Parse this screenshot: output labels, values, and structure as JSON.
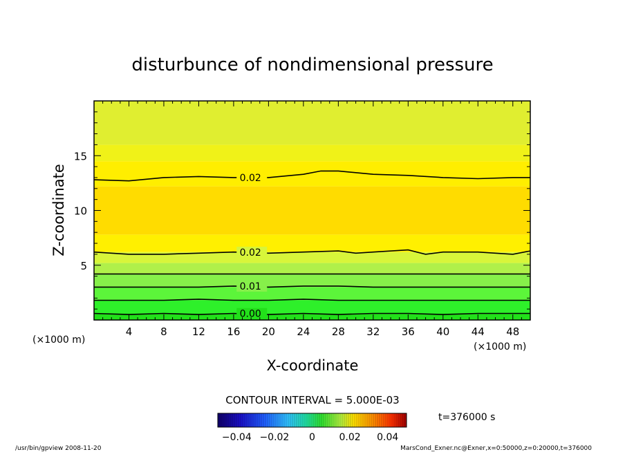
{
  "chart_data": {
    "type": "contour",
    "title": "disturbunce of nondimensional pressure",
    "xlabel": "X-coordinate",
    "ylabel": "Z-coordinate",
    "x_unit_left": "(×1000 m)",
    "x_unit_right": "(×1000 m)",
    "xlim": [
      0,
      50
    ],
    "ylim": [
      0,
      20
    ],
    "x_ticks": [
      4,
      8,
      12,
      16,
      20,
      24,
      28,
      32,
      36,
      40,
      44,
      48
    ],
    "x_tick_labels": [
      "4",
      "8",
      "12",
      "16",
      "20",
      "24",
      "28",
      "32",
      "36",
      "40",
      "44",
      "48"
    ],
    "y_ticks": [
      5,
      10,
      15
    ],
    "y_tick_labels": [
      "5",
      "10",
      "15"
    ],
    "contour_interval_text": "CONTOUR INTERVAL = 5.000E-03",
    "time_text": "t=376000 s",
    "colorbar": {
      "range": [
        -0.05,
        0.05
      ],
      "ticks": [
        -0.04,
        -0.02,
        0,
        0.02,
        0.04
      ],
      "tick_labels": [
        "−0.04",
        "−0.02",
        "0",
        "0.02",
        "0.04"
      ]
    },
    "fill_bands": [
      {
        "z_bottom": 0.0,
        "z_top": 0.6,
        "color": "#22e01a"
      },
      {
        "z_bottom": 0.6,
        "z_top": 1.8,
        "color": "#2ef02a"
      },
      {
        "z_bottom": 1.8,
        "z_top": 3.0,
        "color": "#5cf53a"
      },
      {
        "z_bottom": 3.0,
        "z_top": 4.2,
        "color": "#86f04a"
      },
      {
        "z_bottom": 4.2,
        "z_top": 5.2,
        "color": "#b0f04a"
      },
      {
        "z_bottom": 5.2,
        "z_top": 6.2,
        "color": "#d8f53a"
      },
      {
        "z_bottom": 6.2,
        "z_top": 7.8,
        "color": "#fff000"
      },
      {
        "z_bottom": 7.8,
        "z_top": 12.2,
        "color": "#ffdc00"
      },
      {
        "z_bottom": 12.2,
        "z_top": 14.5,
        "color": "#ffee00"
      },
      {
        "z_bottom": 14.5,
        "z_top": 16.0,
        "color": "#f0f218"
      },
      {
        "z_bottom": 16.0,
        "z_top": 20.0,
        "color": "#e0ee30"
      }
    ],
    "contours": [
      {
        "label": "0.02",
        "label_x": 16.5,
        "points": [
          [
            0,
            12.8
          ],
          [
            4,
            12.7
          ],
          [
            8,
            13.0
          ],
          [
            12,
            13.1
          ],
          [
            16,
            13.0
          ],
          [
            20,
            13.0
          ],
          [
            24,
            13.3
          ],
          [
            26,
            13.6
          ],
          [
            28,
            13.6
          ],
          [
            32,
            13.3
          ],
          [
            36,
            13.2
          ],
          [
            40,
            13.0
          ],
          [
            44,
            12.9
          ],
          [
            48,
            13.0
          ],
          [
            50,
            13.0
          ]
        ]
      },
      {
        "label": "0.02",
        "label_x": 16.5,
        "points": [
          [
            0,
            6.2
          ],
          [
            4,
            6.0
          ],
          [
            8,
            6.0
          ],
          [
            12,
            6.1
          ],
          [
            16,
            6.2
          ],
          [
            20,
            6.1
          ],
          [
            24,
            6.2
          ],
          [
            28,
            6.3
          ],
          [
            30,
            6.1
          ],
          [
            32,
            6.2
          ],
          [
            36,
            6.4
          ],
          [
            38,
            6.0
          ],
          [
            40,
            6.2
          ],
          [
            44,
            6.2
          ],
          [
            48,
            6.0
          ],
          [
            50,
            6.3
          ]
        ]
      },
      {
        "label": "",
        "label_x": null,
        "points": [
          [
            0,
            4.2
          ],
          [
            4,
            4.2
          ],
          [
            8,
            4.2
          ],
          [
            12,
            4.2
          ],
          [
            16,
            4.2
          ],
          [
            20,
            4.2
          ],
          [
            24,
            4.2
          ],
          [
            28,
            4.2
          ],
          [
            32,
            4.2
          ],
          [
            36,
            4.2
          ],
          [
            40,
            4.2
          ],
          [
            44,
            4.2
          ],
          [
            48,
            4.2
          ],
          [
            50,
            4.2
          ]
        ]
      },
      {
        "label": "0.01",
        "label_x": 16.5,
        "points": [
          [
            0,
            3.0
          ],
          [
            4,
            3.0
          ],
          [
            8,
            3.0
          ],
          [
            12,
            3.0
          ],
          [
            16,
            3.1
          ],
          [
            20,
            3.0
          ],
          [
            24,
            3.1
          ],
          [
            28,
            3.1
          ],
          [
            32,
            3.0
          ],
          [
            36,
            3.0
          ],
          [
            40,
            3.0
          ],
          [
            44,
            3.0
          ],
          [
            48,
            3.0
          ],
          [
            50,
            3.0
          ]
        ]
      },
      {
        "label": "",
        "label_x": null,
        "points": [
          [
            0,
            1.8
          ],
          [
            4,
            1.8
          ],
          [
            8,
            1.8
          ],
          [
            12,
            1.9
          ],
          [
            16,
            1.8
          ],
          [
            20,
            1.8
          ],
          [
            24,
            1.9
          ],
          [
            28,
            1.8
          ],
          [
            32,
            1.8
          ],
          [
            36,
            1.8
          ],
          [
            40,
            1.8
          ],
          [
            44,
            1.8
          ],
          [
            48,
            1.8
          ],
          [
            50,
            1.8
          ]
        ]
      },
      {
        "label": "0.00",
        "label_x": 16.5,
        "points": [
          [
            0,
            0.6
          ],
          [
            4,
            0.5
          ],
          [
            8,
            0.6
          ],
          [
            12,
            0.5
          ],
          [
            16,
            0.6
          ],
          [
            20,
            0.5
          ],
          [
            24,
            0.6
          ],
          [
            28,
            0.5
          ],
          [
            32,
            0.6
          ],
          [
            36,
            0.6
          ],
          [
            40,
            0.5
          ],
          [
            44,
            0.6
          ],
          [
            48,
            0.6
          ],
          [
            50,
            0.6
          ]
        ]
      }
    ]
  },
  "footer": {
    "left": "/usr/bin/gpview   2008-11-20",
    "right": "MarsCond_Exner.nc@Exner,x=0:50000,z=0:20000,t=376000"
  }
}
